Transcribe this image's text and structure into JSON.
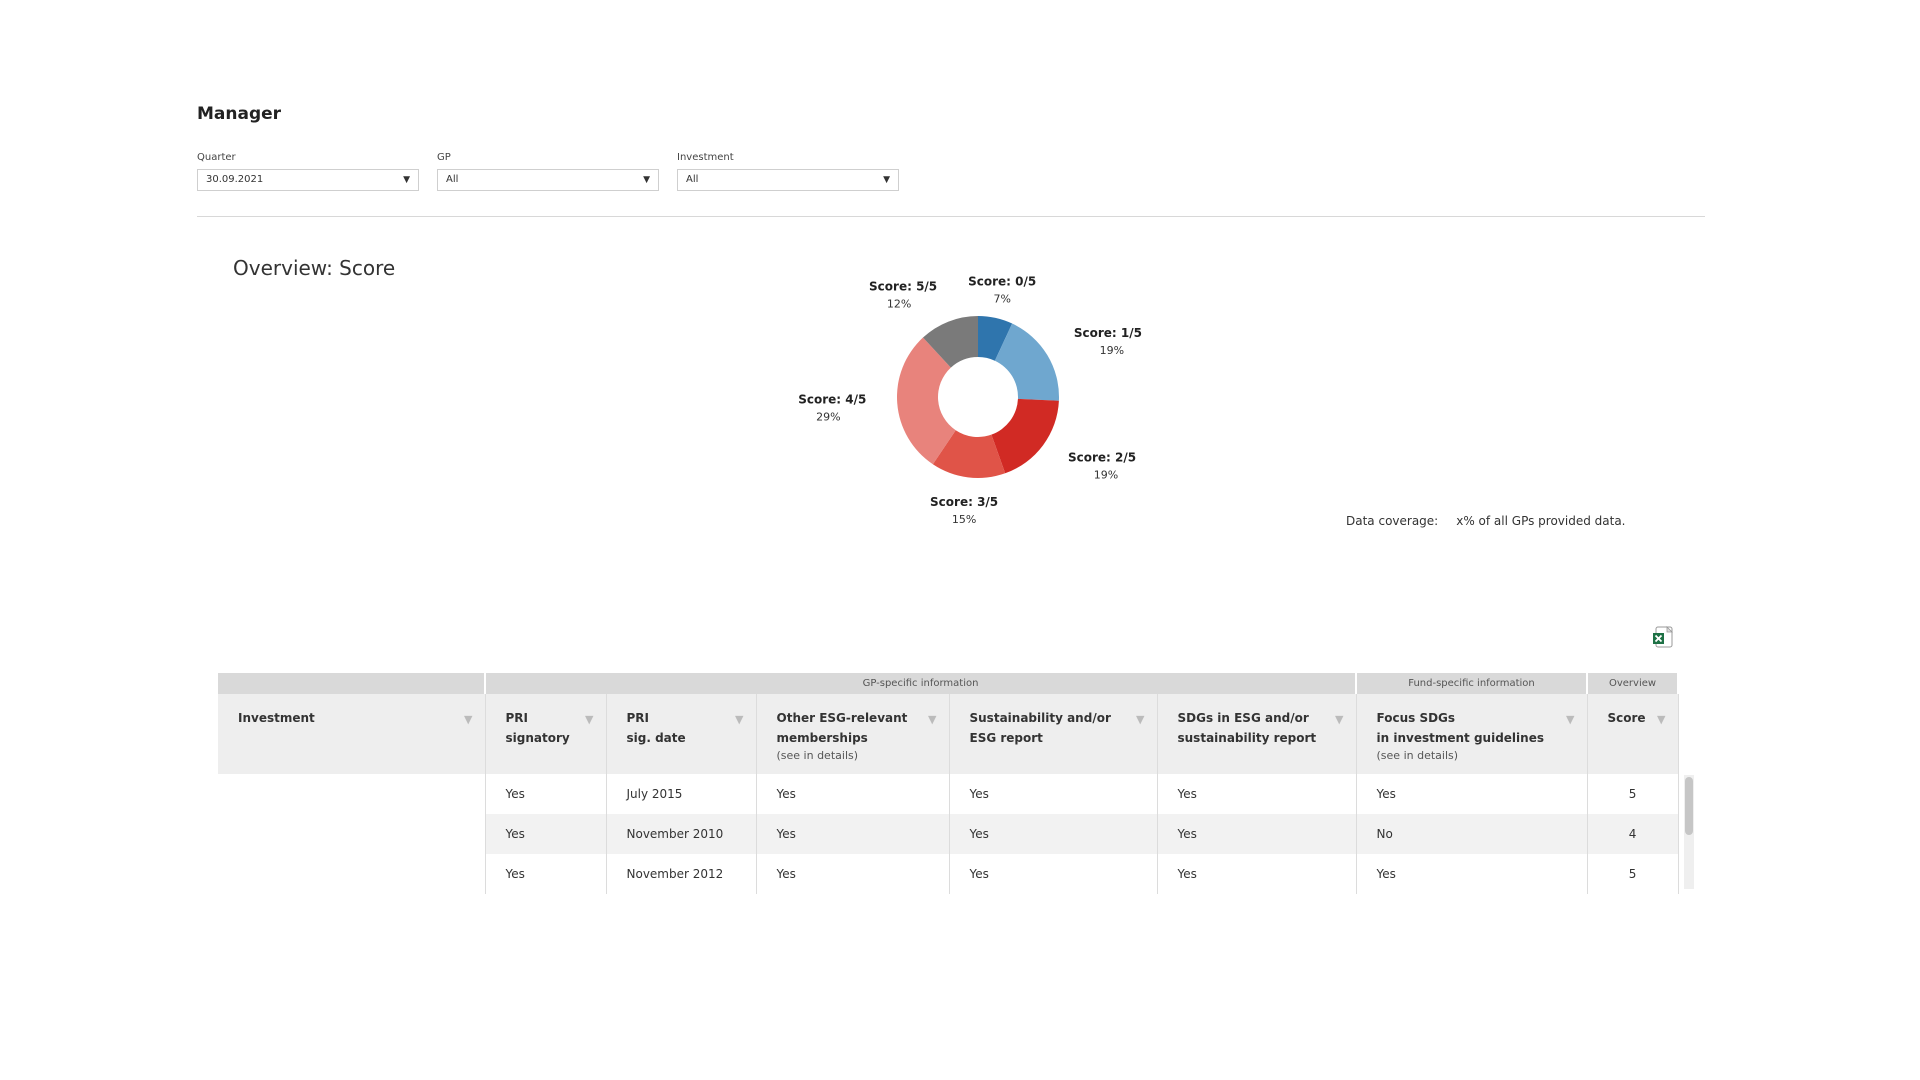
{
  "header": {
    "title": "Manager"
  },
  "filters": [
    {
      "label": "Quarter",
      "value": "30.09.2021"
    },
    {
      "label": "GP",
      "value": "All"
    },
    {
      "label": "Investment",
      "value": "All"
    }
  ],
  "overview": {
    "title": "Overview: Score"
  },
  "chart_data": {
    "type": "pie",
    "categories": [
      "Score: 0/5",
      "Score: 1/5",
      "Score: 2/5",
      "Score: 3/5",
      "Score: 4/5",
      "Score: 5/5"
    ],
    "values": [
      7,
      19,
      19,
      15,
      29,
      12
    ],
    "value_labels": [
      "7%",
      "19%",
      "19%",
      "15%",
      "29%",
      "12%"
    ],
    "colors": [
      "#2f75ad",
      "#6fa7cf",
      "#d12a24",
      "#e05448",
      "#e8837c",
      "#7a7a7a"
    ],
    "donut": true
  },
  "coverage": {
    "label": "Data coverage:",
    "value": "x% of all GPs provided data."
  },
  "export": {
    "icon": "excel-export-icon"
  },
  "table": {
    "groups": {
      "gp": "GP-specific information",
      "fund": "Fund-specific information",
      "overview": "Overview"
    },
    "columns": [
      {
        "line1": "Investment",
        "line2": "",
        "sub": ""
      },
      {
        "line1": "PRI",
        "line2": "signatory",
        "sub": ""
      },
      {
        "line1": "PRI",
        "line2": "sig. date",
        "sub": ""
      },
      {
        "line1": "Other ESG-relevant",
        "line2": "memberships",
        "sub": "(see in details)"
      },
      {
        "line1": "Sustainability and/or",
        "line2": "ESG report",
        "sub": ""
      },
      {
        "line1": "SDGs in ESG and/or",
        "line2": "sustainability report",
        "sub": ""
      },
      {
        "line1": "Focus SDGs",
        "line2": "in investment guidelines",
        "sub": "(see in details)"
      },
      {
        "line1": "Score",
        "line2": "",
        "sub": ""
      }
    ],
    "rows": [
      {
        "investment": "",
        "pri_signatory": "Yes",
        "pri_date": "July 2015",
        "other_esg": "Yes",
        "sustainability": "Yes",
        "sdgs": "Yes",
        "focus_sdgs": "Yes",
        "score": "5"
      },
      {
        "investment": "",
        "pri_signatory": "Yes",
        "pri_date": "November 2010",
        "other_esg": "Yes",
        "sustainability": "Yes",
        "sdgs": "Yes",
        "focus_sdgs": "No",
        "score": "4"
      },
      {
        "investment": "",
        "pri_signatory": "Yes",
        "pri_date": "November 2012",
        "other_esg": "Yes",
        "sustainability": "Yes",
        "sdgs": "Yes",
        "focus_sdgs": "Yes",
        "score": "5"
      }
    ]
  }
}
